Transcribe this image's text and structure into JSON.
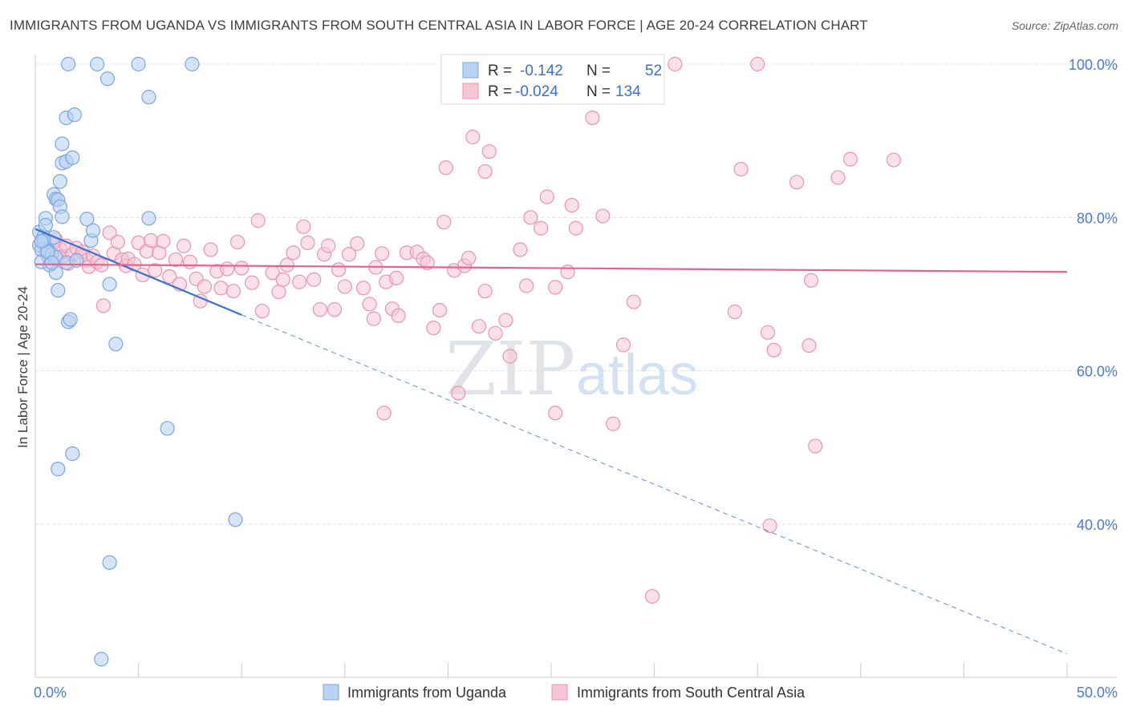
{
  "title": "IMMIGRANTS FROM UGANDA VS IMMIGRANTS FROM SOUTH CENTRAL ASIA IN LABOR FORCE | AGE 20-24 CORRELATION CHART",
  "source": "Source: ZipAtlas.com",
  "watermark": {
    "zip": "ZIP",
    "atlas": "atlas"
  },
  "colors": {
    "blue_fill": "#b9d2f3",
    "blue_stroke": "#7aa6e0",
    "blue_line": "#3a70d4",
    "pink_fill": "#f6c6d6",
    "pink_stroke": "#eb93b1",
    "pink_line": "#e5648e",
    "axis_text": "#4a7cd0",
    "grid": "#dde3ea"
  },
  "legend": {
    "rows": [
      {
        "r_label": "R = ",
        "r_value": "-0.142",
        "n_label": "N = ",
        "n_value": "52",
        "series": "blue"
      },
      {
        "r_label": "R = ",
        "r_value": "-0.024",
        "n_label": "N = ",
        "n_value": "134",
        "series": "pink"
      }
    ]
  },
  "chart_data": {
    "type": "scatter",
    "title": "IMMIGRANTS FROM UGANDA VS IMMIGRANTS FROM SOUTH CENTRAL ASIA IN LABOR FORCE | AGE 20-24 CORRELATION CHART",
    "xlabel": "",
    "ylabel": "In Labor Force | Age 20-24",
    "xlim": [
      0,
      50
    ],
    "ylim": [
      20,
      103
    ],
    "x_tick_labels": [
      {
        "value": 0,
        "label": "0.0%"
      },
      {
        "value": 50,
        "label": "50.0%"
      }
    ],
    "y_tick_labels": [
      {
        "value": 100,
        "label": "100.0%"
      },
      {
        "value": 80,
        "label": "80.0%"
      },
      {
        "value": 60,
        "label": "60.0%"
      },
      {
        "value": 40,
        "label": "40.0%"
      }
    ],
    "grid": true,
    "legend_position": "top-center",
    "series": [
      {
        "name": "Immigrants from Uganda",
        "color": "#b9d2f3",
        "trend": {
          "x0": 0,
          "y0": 78.5,
          "x1": 10,
          "y1": 67.3,
          "dashed_to_x": 50,
          "dashed_to_y": 23.1
        },
        "points": [
          [
            0.2,
            78.1
          ],
          [
            0.2,
            76.4
          ],
          [
            0.3,
            75.8
          ],
          [
            0.3,
            74.2
          ],
          [
            0.4,
            77.5
          ],
          [
            0.5,
            79.9
          ],
          [
            0.5,
            79.0
          ],
          [
            0.6,
            75.7
          ],
          [
            0.7,
            73.8
          ],
          [
            0.8,
            75.2
          ],
          [
            0.9,
            83.0
          ],
          [
            0.9,
            77.4
          ],
          [
            1.0,
            82.4
          ],
          [
            1.0,
            74.8
          ],
          [
            1.0,
            72.8
          ],
          [
            1.1,
            70.5
          ],
          [
            1.1,
            82.3
          ],
          [
            1.2,
            84.7
          ],
          [
            1.2,
            81.4
          ],
          [
            1.3,
            87.1
          ],
          [
            1.3,
            80.1
          ],
          [
            1.3,
            89.6
          ],
          [
            1.5,
            93.0
          ],
          [
            1.5,
            87.3
          ],
          [
            1.5,
            74.1
          ],
          [
            1.6,
            66.4
          ],
          [
            1.7,
            66.7
          ],
          [
            1.8,
            87.8
          ],
          [
            1.8,
            49.2
          ],
          [
            1.9,
            93.4
          ],
          [
            1.1,
            47.2
          ],
          [
            1.6,
            100.0
          ],
          [
            2.5,
            79.8
          ],
          [
            2.7,
            77.0
          ],
          [
            2.8,
            78.3
          ],
          [
            3.0,
            100.0
          ],
          [
            3.5,
            98.1
          ],
          [
            3.6,
            71.3
          ],
          [
            3.9,
            63.5
          ],
          [
            3.6,
            35.0
          ],
          [
            3.2,
            22.4
          ],
          [
            5.0,
            100.0
          ],
          [
            5.5,
            95.7
          ],
          [
            5.5,
            79.9
          ],
          [
            6.4,
            52.5
          ],
          [
            7.6,
            100.0
          ],
          [
            9.7,
            40.6
          ],
          [
            0.4,
            77.0
          ],
          [
            0.6,
            75.5
          ],
          [
            0.3,
            76.9
          ],
          [
            0.8,
            74.1
          ],
          [
            2.0,
            74.4
          ]
        ]
      },
      {
        "name": "Immigrants from South Central Asia",
        "color": "#f6c6d6",
        "trend": {
          "x0": 0,
          "y0": 73.9,
          "x1": 50,
          "y1": 72.9
        },
        "points": [
          [
            0.3,
            76.9
          ],
          [
            0.5,
            75.5
          ],
          [
            0.6,
            75.0
          ],
          [
            0.8,
            76.5
          ],
          [
            1.0,
            77.1
          ],
          [
            1.2,
            75.9
          ],
          [
            1.3,
            74.9
          ],
          [
            1.5,
            76.3
          ],
          [
            1.6,
            74.0
          ],
          [
            1.8,
            75.2
          ],
          [
            2.0,
            76.0
          ],
          [
            2.2,
            74.9
          ],
          [
            2.3,
            75.5
          ],
          [
            2.5,
            74.4
          ],
          [
            2.6,
            73.6
          ],
          [
            2.8,
            75.0
          ],
          [
            3.0,
            74.2
          ],
          [
            3.2,
            73.8
          ],
          [
            3.3,
            68.5
          ],
          [
            3.6,
            78.0
          ],
          [
            3.8,
            75.3
          ],
          [
            4.0,
            76.8
          ],
          [
            4.2,
            74.5
          ],
          [
            4.4,
            73.7
          ],
          [
            4.5,
            74.6
          ],
          [
            4.8,
            73.9
          ],
          [
            5.0,
            76.7
          ],
          [
            5.2,
            72.5
          ],
          [
            5.4,
            75.6
          ],
          [
            5.6,
            77.0
          ],
          [
            5.8,
            73.1
          ],
          [
            6.0,
            75.4
          ],
          [
            6.2,
            76.9
          ],
          [
            6.5,
            72.3
          ],
          [
            6.8,
            74.5
          ],
          [
            7.0,
            71.3
          ],
          [
            7.2,
            76.3
          ],
          [
            7.5,
            74.2
          ],
          [
            7.8,
            72.0
          ],
          [
            8.0,
            69.1
          ],
          [
            8.2,
            71.0
          ],
          [
            8.5,
            75.8
          ],
          [
            8.8,
            73.0
          ],
          [
            9.0,
            70.8
          ],
          [
            9.3,
            73.3
          ],
          [
            9.6,
            70.4
          ],
          [
            9.8,
            76.8
          ],
          [
            10.0,
            73.4
          ],
          [
            10.5,
            71.5
          ],
          [
            10.8,
            79.6
          ],
          [
            11.0,
            67.8
          ],
          [
            11.5,
            72.8
          ],
          [
            11.8,
            70.3
          ],
          [
            12.0,
            71.9
          ],
          [
            12.2,
            73.8
          ],
          [
            12.5,
            75.4
          ],
          [
            12.8,
            71.6
          ],
          [
            13.0,
            78.8
          ],
          [
            13.2,
            76.7
          ],
          [
            13.5,
            71.9
          ],
          [
            13.8,
            68.0
          ],
          [
            14.0,
            75.2
          ],
          [
            14.2,
            76.3
          ],
          [
            14.5,
            68.0
          ],
          [
            14.7,
            73.2
          ],
          [
            15.0,
            71.0
          ],
          [
            15.2,
            75.2
          ],
          [
            15.6,
            76.6
          ],
          [
            15.9,
            70.8
          ],
          [
            16.2,
            68.7
          ],
          [
            16.4,
            66.8
          ],
          [
            16.5,
            73.5
          ],
          [
            16.8,
            75.3
          ],
          [
            17.0,
            71.6
          ],
          [
            17.3,
            68.1
          ],
          [
            17.6,
            67.2
          ],
          [
            16.9,
            54.5
          ],
          [
            17.5,
            72.1
          ],
          [
            18.0,
            75.4
          ],
          [
            18.5,
            75.5
          ],
          [
            18.8,
            74.6
          ],
          [
            19.0,
            74.1
          ],
          [
            19.3,
            65.6
          ],
          [
            19.6,
            67.9
          ],
          [
            19.8,
            79.4
          ],
          [
            19.9,
            86.5
          ],
          [
            20.3,
            73.1
          ],
          [
            20.5,
            57.1
          ],
          [
            20.8,
            73.7
          ],
          [
            21.0,
            74.7
          ],
          [
            21.2,
            90.5
          ],
          [
            21.8,
            86.0
          ],
          [
            22.0,
            88.6
          ],
          [
            21.8,
            70.4
          ],
          [
            21.5,
            65.8
          ],
          [
            22.3,
            64.9
          ],
          [
            22.8,
            66.6
          ],
          [
            23.0,
            61.9
          ],
          [
            23.5,
            75.8
          ],
          [
            23.8,
            71.1
          ],
          [
            24.0,
            80.0
          ],
          [
            24.5,
            78.6
          ],
          [
            24.8,
            82.7
          ],
          [
            25.2,
            70.9
          ],
          [
            25.2,
            54.5
          ],
          [
            25.8,
            72.9
          ],
          [
            26.0,
            81.6
          ],
          [
            26.2,
            78.6
          ],
          [
            27.0,
            93.0
          ],
          [
            27.5,
            80.2
          ],
          [
            28.0,
            53.1
          ],
          [
            28.5,
            63.4
          ],
          [
            29.0,
            69.0
          ],
          [
            29.9,
            30.6
          ],
          [
            31.0,
            100.0
          ],
          [
            33.9,
            67.7
          ],
          [
            34.2,
            86.3
          ],
          [
            35.0,
            100.0
          ],
          [
            35.6,
            39.8
          ],
          [
            35.5,
            65.0
          ],
          [
            35.8,
            62.7
          ],
          [
            36.9,
            84.6
          ],
          [
            37.5,
            63.3
          ],
          [
            37.6,
            71.8
          ],
          [
            37.8,
            50.2
          ],
          [
            38.9,
            85.2
          ],
          [
            39.5,
            87.6
          ],
          [
            41.6,
            87.5
          ]
        ]
      }
    ]
  },
  "bottom_legend": [
    {
      "label": "Immigrants from Uganda",
      "series": "blue"
    },
    {
      "label": "Immigrants from South Central Asia",
      "series": "pink"
    }
  ]
}
